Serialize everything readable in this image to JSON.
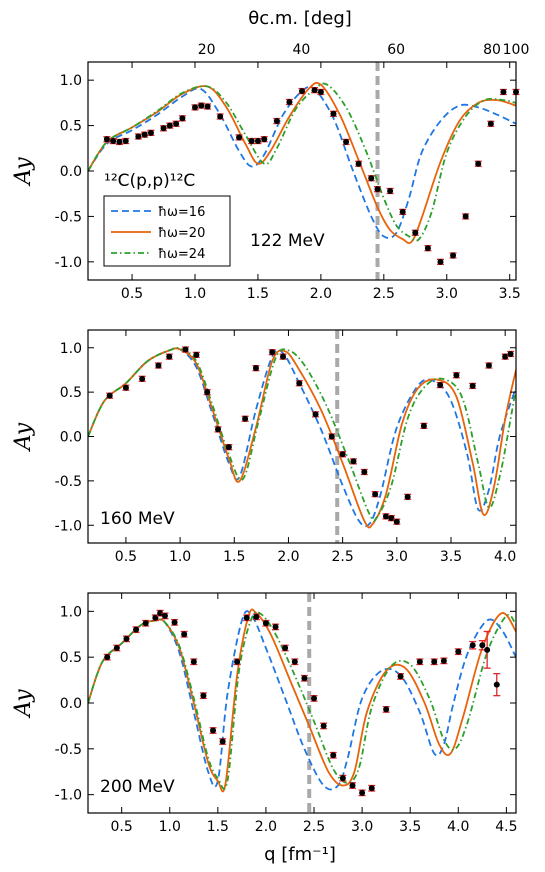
{
  "figure": {
    "top_axis_label": "θc.m. [deg]",
    "x_axis_label": "q [fm⁻¹]",
    "legend": {
      "entries": [
        "ħω=16",
        "ħω=20",
        "ħω=24"
      ]
    },
    "reaction_label": "¹²C(p,p)¹²C",
    "colors": {
      "hw16": "#1f77e4",
      "hw20": "#e8630a",
      "hw24": "#2ca02c",
      "data_marker": "#000000",
      "error_bar": "#e0262b",
      "cutoff_line": "#a9a9a9"
    }
  },
  "chart_data": [
    {
      "type": "line",
      "panel": "top",
      "annotation": "122 MeV",
      "ylabel": "Ay",
      "xlim": [
        0.15,
        3.55
      ],
      "ylim": [
        -1.2,
        1.2
      ],
      "x_ticks": [
        0.5,
        1.0,
        1.5,
        2.0,
        2.5,
        3.0,
        3.5
      ],
      "x_tick_labels": [
        "0.5",
        "1.0",
        "1.5",
        "2.0",
        "2.5",
        "3.0",
        "3.5"
      ],
      "y_ticks": [
        -1.0,
        -0.5,
        0.0,
        0.5,
        1.0
      ],
      "y_tick_labels": [
        "-1.0",
        "-0.5",
        "0.0",
        "0.5",
        "1.0"
      ],
      "top_axis": {
        "ticks_q": [
          1.14,
          1.93,
          2.72,
          3.52
        ],
        "tick_labels": [
          "20",
          "40",
          "60",
          "80"
        ],
        "extra_ticks_q": [
          3.72
        ],
        "extra_labels": [
          "100"
        ]
      },
      "cutoff_q": 2.45,
      "series": [
        {
          "name": "ħω=16",
          "style": "dash",
          "x": [
            0.15,
            0.3,
            0.5,
            0.7,
            0.9,
            1.05,
            1.2,
            1.35,
            1.45,
            1.55,
            1.7,
            1.85,
            1.95,
            2.1,
            2.25,
            2.4,
            2.5,
            2.6,
            2.7,
            2.8,
            2.95,
            3.1,
            3.25,
            3.4,
            3.55
          ],
          "y": [
            0.0,
            0.3,
            0.45,
            0.62,
            0.82,
            0.9,
            0.62,
            0.22,
            0.05,
            0.18,
            0.62,
            0.88,
            0.9,
            0.58,
            0.02,
            -0.5,
            -0.72,
            -0.68,
            -0.3,
            0.2,
            0.55,
            0.72,
            0.7,
            0.62,
            0.52
          ]
        },
        {
          "name": "ħω=20",
          "style": "solid",
          "x": [
            0.15,
            0.3,
            0.5,
            0.7,
            0.9,
            1.1,
            1.25,
            1.4,
            1.5,
            1.6,
            1.75,
            1.9,
            2.0,
            2.15,
            2.3,
            2.45,
            2.55,
            2.65,
            2.72,
            2.8,
            2.95,
            3.1,
            3.25,
            3.4,
            3.55
          ],
          "y": [
            0.0,
            0.32,
            0.48,
            0.65,
            0.85,
            0.93,
            0.7,
            0.3,
            0.08,
            0.22,
            0.6,
            0.9,
            0.95,
            0.62,
            0.12,
            -0.4,
            -0.65,
            -0.75,
            -0.78,
            -0.52,
            0.1,
            0.55,
            0.75,
            0.78,
            0.72
          ]
        },
        {
          "name": "ħω=24",
          "style": "dashdot",
          "x": [
            0.15,
            0.3,
            0.5,
            0.7,
            0.9,
            1.1,
            1.25,
            1.4,
            1.55,
            1.65,
            1.8,
            1.95,
            2.05,
            2.2,
            2.35,
            2.5,
            2.6,
            2.7,
            2.78,
            2.88,
            3.0,
            3.15,
            3.3,
            3.45,
            3.55
          ],
          "y": [
            0.0,
            0.32,
            0.48,
            0.66,
            0.86,
            0.93,
            0.75,
            0.4,
            0.08,
            0.25,
            0.68,
            0.9,
            0.95,
            0.7,
            0.25,
            -0.3,
            -0.6,
            -0.72,
            -0.75,
            -0.45,
            0.2,
            0.6,
            0.78,
            0.78,
            0.75
          ]
        },
        {
          "name": "data",
          "style": "points",
          "x": [
            0.3,
            0.35,
            0.4,
            0.45,
            0.55,
            0.6,
            0.65,
            0.75,
            0.8,
            0.85,
            0.9,
            1.0,
            1.05,
            1.1,
            1.2,
            1.35,
            1.45,
            1.5,
            1.55,
            1.65,
            1.75,
            1.85,
            1.95,
            2.0,
            2.1,
            2.2,
            2.3,
            2.4,
            2.45,
            2.55,
            2.65,
            2.75,
            2.85,
            2.95,
            3.05,
            3.15,
            3.25,
            3.35,
            3.45,
            3.55
          ],
          "y": [
            0.35,
            0.33,
            0.32,
            0.33,
            0.38,
            0.4,
            0.42,
            0.47,
            0.5,
            0.52,
            0.58,
            0.7,
            0.72,
            0.71,
            0.6,
            0.37,
            0.33,
            0.33,
            0.35,
            0.55,
            0.76,
            0.88,
            0.89,
            0.87,
            0.63,
            0.32,
            0.08,
            -0.08,
            -0.2,
            -0.22,
            -0.45,
            -0.68,
            -0.85,
            -1.0,
            -0.93,
            -0.5,
            0.08,
            0.52,
            0.87,
            0.87
          ],
          "yerr": 0.02
        }
      ]
    },
    {
      "type": "line",
      "panel": "middle",
      "annotation": "160 MeV",
      "ylabel": "Ay",
      "xlim": [
        0.15,
        4.1
      ],
      "ylim": [
        -1.2,
        1.2
      ],
      "x_ticks": [
        0.5,
        1.0,
        1.5,
        2.0,
        2.5,
        3.0,
        3.5,
        4.0
      ],
      "x_tick_labels": [
        "0.5",
        "1.0",
        "1.5",
        "2.0",
        "2.5",
        "3.0",
        "3.5",
        "4.0"
      ],
      "y_ticks": [
        -1.0,
        -0.5,
        0.0,
        0.5,
        1.0
      ],
      "y_tick_labels": [
        "-1.0",
        "-0.5",
        "0.0",
        "0.5",
        "1.0"
      ],
      "cutoff_q": 2.45,
      "series": [
        {
          "name": "ħω=16",
          "style": "dash",
          "x": [
            0.15,
            0.3,
            0.5,
            0.7,
            0.9,
            1.0,
            1.15,
            1.3,
            1.45,
            1.55,
            1.7,
            1.85,
            1.95,
            2.1,
            2.3,
            2.5,
            2.65,
            2.75,
            2.85,
            3.0,
            3.2,
            3.35,
            3.5,
            3.65,
            3.75,
            3.85,
            3.95,
            4.1
          ],
          "y": [
            0.0,
            0.4,
            0.6,
            0.85,
            0.97,
            0.98,
            0.78,
            0.25,
            -0.3,
            -0.45,
            0.3,
            0.9,
            0.94,
            0.6,
            0.08,
            -0.55,
            -0.95,
            -0.98,
            -0.65,
            0.1,
            0.58,
            0.62,
            0.4,
            -0.2,
            -0.82,
            -0.6,
            0.0,
            0.55
          ]
        },
        {
          "name": "ħω=20",
          "style": "solid",
          "x": [
            0.15,
            0.3,
            0.5,
            0.7,
            0.9,
            1.0,
            1.15,
            1.3,
            1.45,
            1.55,
            1.7,
            1.85,
            1.97,
            2.1,
            2.3,
            2.5,
            2.7,
            2.78,
            2.9,
            3.05,
            3.2,
            3.38,
            3.55,
            3.7,
            3.8,
            3.9,
            4.0,
            4.1
          ],
          "y": [
            0.0,
            0.4,
            0.6,
            0.85,
            0.97,
            0.98,
            0.82,
            0.3,
            -0.25,
            -0.5,
            0.1,
            0.85,
            0.96,
            0.75,
            0.3,
            -0.3,
            -0.95,
            -0.98,
            -0.65,
            0.15,
            0.55,
            0.64,
            0.45,
            -0.3,
            -0.88,
            -0.55,
            0.2,
            0.75
          ]
        },
        {
          "name": "ħω=24",
          "style": "dashdot",
          "x": [
            0.15,
            0.3,
            0.5,
            0.7,
            0.9,
            1.0,
            1.15,
            1.3,
            1.45,
            1.58,
            1.72,
            1.88,
            2.0,
            2.15,
            2.35,
            2.55,
            2.75,
            2.82,
            2.95,
            3.1,
            3.25,
            3.42,
            3.6,
            3.75,
            3.85,
            3.95,
            4.05,
            4.1
          ],
          "y": [
            0.0,
            0.4,
            0.6,
            0.85,
            0.97,
            0.99,
            0.85,
            0.35,
            -0.2,
            -0.48,
            0.15,
            0.88,
            0.97,
            0.8,
            0.35,
            -0.25,
            -0.88,
            -0.9,
            -0.55,
            0.2,
            0.55,
            0.65,
            0.45,
            -0.3,
            -0.8,
            -0.45,
            0.2,
            0.55
          ]
        },
        {
          "name": "data",
          "style": "points",
          "x": [
            0.35,
            0.5,
            0.65,
            0.8,
            0.9,
            1.05,
            1.15,
            1.25,
            1.35,
            1.45,
            1.6,
            1.7,
            1.85,
            1.95,
            2.1,
            2.25,
            2.4,
            2.5,
            2.6,
            2.7,
            2.8,
            2.9,
            2.95,
            3.0,
            3.1,
            3.25,
            3.4,
            3.55,
            3.7,
            3.85,
            4.0,
            4.05
          ],
          "y": [
            0.46,
            0.55,
            0.65,
            0.8,
            0.9,
            0.98,
            0.92,
            0.5,
            0.08,
            -0.12,
            0.2,
            0.77,
            0.95,
            0.9,
            0.6,
            0.25,
            0.0,
            -0.2,
            -0.28,
            -0.4,
            -0.65,
            -0.9,
            -0.92,
            -0.96,
            -0.68,
            0.12,
            0.58,
            0.69,
            0.57,
            0.8,
            0.9,
            0.93
          ],
          "yerr": 0.025
        }
      ]
    },
    {
      "type": "line",
      "panel": "bottom",
      "annotation": "200 MeV",
      "ylabel": "Ay",
      "xlim": [
        0.15,
        4.6
      ],
      "ylim": [
        -1.2,
        1.2
      ],
      "x_ticks": [
        0.5,
        1.0,
        1.5,
        2.0,
        2.5,
        3.0,
        3.5,
        4.0,
        4.5
      ],
      "x_tick_labels": [
        "0.5",
        "1.0",
        "1.5",
        "2.0",
        "2.5",
        "3.0",
        "3.5",
        "4.0",
        "4.5"
      ],
      "y_ticks": [
        -1.0,
        -0.5,
        0.0,
        0.5,
        1.0
      ],
      "y_tick_labels": [
        "-1.0",
        "-0.5",
        "0.0",
        "0.5",
        "1.0"
      ],
      "cutoff_q": 2.45,
      "series": [
        {
          "name": "ħω=16",
          "style": "dash",
          "x": [
            0.15,
            0.3,
            0.5,
            0.7,
            0.85,
            0.95,
            1.1,
            1.25,
            1.4,
            1.5,
            1.6,
            1.75,
            1.85,
            2.0,
            2.2,
            2.4,
            2.6,
            2.75,
            2.85,
            3.0,
            3.2,
            3.4,
            3.6,
            3.75,
            3.85,
            3.95,
            4.1,
            4.3,
            4.45,
            4.6
          ],
          "y": [
            0.0,
            0.45,
            0.65,
            0.85,
            0.9,
            0.88,
            0.55,
            -0.1,
            -0.75,
            -0.85,
            0.1,
            0.9,
            0.96,
            0.6,
            0.05,
            -0.5,
            -0.9,
            -0.9,
            -0.6,
            0.05,
            0.35,
            0.3,
            -0.1,
            -0.55,
            -0.45,
            0.0,
            0.55,
            0.9,
            0.8,
            0.5
          ]
        },
        {
          "name": "ħω=20",
          "style": "solid",
          "x": [
            0.15,
            0.3,
            0.5,
            0.7,
            0.85,
            0.95,
            1.1,
            1.25,
            1.4,
            1.5,
            1.58,
            1.7,
            1.82,
            1.9,
            2.05,
            2.25,
            2.45,
            2.65,
            2.8,
            2.92,
            3.05,
            3.25,
            3.45,
            3.65,
            3.8,
            3.92,
            4.05,
            4.25,
            4.45,
            4.6
          ],
          "y": [
            0.0,
            0.45,
            0.65,
            0.85,
            0.9,
            0.88,
            0.6,
            0.0,
            -0.65,
            -0.85,
            -0.88,
            0.3,
            0.95,
            0.98,
            0.75,
            0.25,
            -0.25,
            -0.75,
            -0.9,
            -0.75,
            -0.1,
            0.35,
            0.38,
            0.0,
            -0.45,
            -0.55,
            -0.15,
            0.6,
            0.98,
            0.78
          ]
        },
        {
          "name": "ħω=24",
          "style": "dashdot",
          "x": [
            0.15,
            0.3,
            0.5,
            0.7,
            0.85,
            0.95,
            1.1,
            1.25,
            1.4,
            1.5,
            1.6,
            1.72,
            1.85,
            1.95,
            2.1,
            2.3,
            2.5,
            2.7,
            2.85,
            2.97,
            3.1,
            3.3,
            3.5,
            3.7,
            3.85,
            3.97,
            4.1,
            4.3,
            4.5,
            4.6
          ],
          "y": [
            0.0,
            0.45,
            0.65,
            0.85,
            0.9,
            0.88,
            0.62,
            0.05,
            -0.6,
            -0.82,
            -0.85,
            0.35,
            0.92,
            0.97,
            0.75,
            0.3,
            -0.2,
            -0.72,
            -0.87,
            -0.7,
            -0.05,
            0.4,
            0.42,
            0.05,
            -0.4,
            -0.5,
            -0.2,
            0.55,
            0.95,
            0.85
          ]
        },
        {
          "name": "data",
          "style": "points",
          "x": [
            0.35,
            0.45,
            0.55,
            0.65,
            0.75,
            0.85,
            0.9,
            0.95,
            1.05,
            1.15,
            1.25,
            1.35,
            1.45,
            1.55,
            1.7,
            1.8,
            1.9,
            2.0,
            2.1,
            2.2,
            2.3,
            2.4,
            2.5,
            2.6,
            2.7,
            2.8,
            2.9,
            3.0,
            3.1,
            3.25,
            3.4,
            3.6,
            3.75,
            3.85,
            4.0,
            4.15,
            4.25,
            4.3,
            4.4
          ],
          "y": [
            0.5,
            0.6,
            0.7,
            0.8,
            0.87,
            0.93,
            0.98,
            0.95,
            0.88,
            0.75,
            0.45,
            0.08,
            -0.3,
            -0.42,
            0.45,
            0.93,
            0.94,
            0.87,
            0.83,
            0.6,
            0.45,
            0.27,
            0.05,
            -0.25,
            -0.57,
            -0.82,
            -0.9,
            -0.98,
            -0.93,
            -0.07,
            0.29,
            0.45,
            0.45,
            0.46,
            0.56,
            0.63,
            0.63,
            0.58,
            0.2
          ],
          "yerr": [
            0.03,
            0.03,
            0.03,
            0.03,
            0.03,
            0.03,
            0.03,
            0.03,
            0.03,
            0.03,
            0.03,
            0.03,
            0.03,
            0.03,
            0.03,
            0.03,
            0.03,
            0.03,
            0.03,
            0.03,
            0.03,
            0.03,
            0.03,
            0.03,
            0.03,
            0.03,
            0.03,
            0.03,
            0.03,
            0.03,
            0.03,
            0.03,
            0.03,
            0.03,
            0.03,
            0.04,
            0.05,
            0.2,
            0.12
          ]
        }
      ]
    }
  ]
}
